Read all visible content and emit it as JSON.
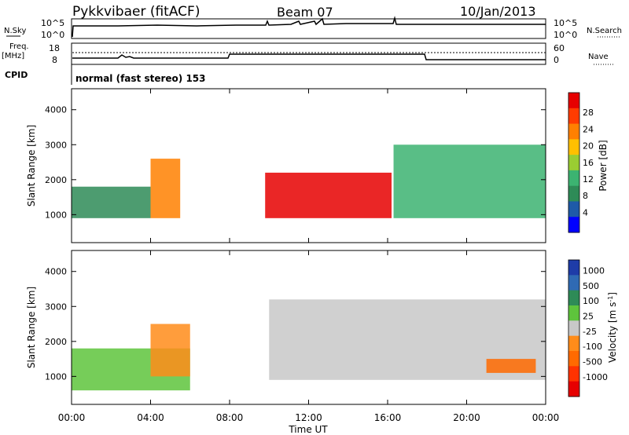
{
  "header": {
    "station": "Pykkvibaer (fitACF)",
    "beam": "Beam 07",
    "date": "10/Jan/2013"
  },
  "status": {
    "nsky_label": "N.Sky",
    "nsky_ticks": [
      "10^5",
      "10^0"
    ],
    "nsearch_label": "N.Search",
    "nsearch_ticks": [
      "10^5",
      "10^0"
    ],
    "freq_label": "Freq.",
    "freq_unit": "[MHz]",
    "freq_ticks": [
      "18",
      "8"
    ],
    "nave_label": "Nave",
    "nave_ticks": [
      "60",
      "0"
    ],
    "cpid_label": "CPID",
    "cpid_value": "normal (fast stereo) 153"
  },
  "chart_data": [
    {
      "type": "heatmap",
      "title": "",
      "ylabel": "Slant Range [km]",
      "xlabel": "",
      "ylim": [
        200,
        4600
      ],
      "xlim": [
        0,
        24
      ],
      "y_ticks": [
        1000,
        2000,
        3000,
        4000
      ],
      "x_ticks": [
        0,
        4,
        8,
        12,
        16,
        20,
        24
      ],
      "colorbar": {
        "label": "Power [dB]",
        "ticks": [
          "28",
          "24",
          "20",
          "16",
          "12",
          "8",
          "4"
        ],
        "colors": [
          "#e60000",
          "#ff3c00",
          "#ff8000",
          "#ffc000",
          "#9acd32",
          "#3cb371",
          "#2e8b57",
          "#1e5aa8",
          "#0000ff"
        ]
      },
      "regions": [
        {
          "x": [
            0.0,
            4.0
          ],
          "y": [
            900,
            1800
          ],
          "level": "medium",
          "color": "#2e8b57"
        },
        {
          "x": [
            4.0,
            5.5
          ],
          "y": [
            900,
            2600
          ],
          "level": "high",
          "color": "#ff8000"
        },
        {
          "x": [
            9.8,
            16.2
          ],
          "y": [
            900,
            2200
          ],
          "level": "max",
          "color": "#e60000"
        },
        {
          "x": [
            16.3,
            24.0
          ],
          "y": [
            900,
            3000
          ],
          "level": "medium",
          "color": "#3cb371"
        }
      ]
    },
    {
      "type": "heatmap",
      "title": "",
      "ylabel": "Slant Range [km]",
      "xlabel": "Time UT",
      "ylim": [
        200,
        4600
      ],
      "xlim": [
        0,
        24
      ],
      "y_ticks": [
        1000,
        2000,
        3000,
        4000
      ],
      "x_ticks": [
        0,
        4,
        8,
        12,
        16,
        20,
        24
      ],
      "x_tick_labels": [
        "00:00",
        "04:00",
        "08:00",
        "12:00",
        "16:00",
        "20:00",
        "00:00"
      ],
      "colorbar": {
        "label": "Velocity [m s^-1]",
        "ticks": [
          "1000",
          "500",
          "100",
          "25",
          "-25",
          "-100",
          "-500",
          "-1000"
        ],
        "colors": [
          "#1e3ca8",
          "#2f6ab4",
          "#2e8b57",
          "#5ec43c",
          "#c8c8c8",
          "#ff8c1a",
          "#ff6a00",
          "#ff3300",
          "#e60000"
        ]
      },
      "regions": [
        {
          "x": [
            0.0,
            6.0
          ],
          "y": [
            600,
            1800
          ],
          "level": "toward",
          "color": "#5ec43c"
        },
        {
          "x": [
            4.0,
            6.0
          ],
          "y": [
            1000,
            2500
          ],
          "level": "away",
          "color": "#ff8c1a"
        },
        {
          "x": [
            10.0,
            24.0
          ],
          "y": [
            900,
            3200
          ],
          "level": "ground",
          "color": "#c8c8c8"
        },
        {
          "x": [
            21.0,
            23.5
          ],
          "y": [
            1100,
            1500
          ],
          "level": "away",
          "color": "#ff6a00"
        }
      ]
    }
  ]
}
